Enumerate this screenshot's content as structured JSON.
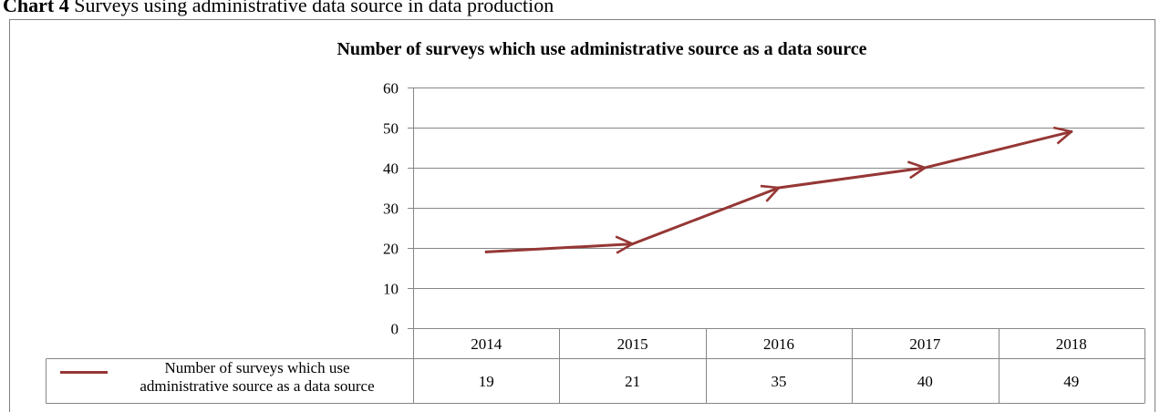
{
  "caption": {
    "prefix": "Chart 4",
    "text": "Surveys using administrative data source in data production"
  },
  "chart_data": {
    "type": "line",
    "title": "Number of surveys which use administrative source as a data source",
    "categories": [
      "2014",
      "2015",
      "2016",
      "2017",
      "2018"
    ],
    "series": [
      {
        "name": "Number of surveys which use administrative source as a data source",
        "values": [
          19,
          21,
          35,
          40,
          49
        ],
        "color": "#953735"
      }
    ],
    "ylim": [
      0,
      60
    ],
    "yticks": [
      0,
      10,
      20,
      30,
      40,
      50,
      60
    ],
    "xlabel": "",
    "ylabel": "",
    "grid": true,
    "legend": "data table below chart",
    "data_table": true
  }
}
